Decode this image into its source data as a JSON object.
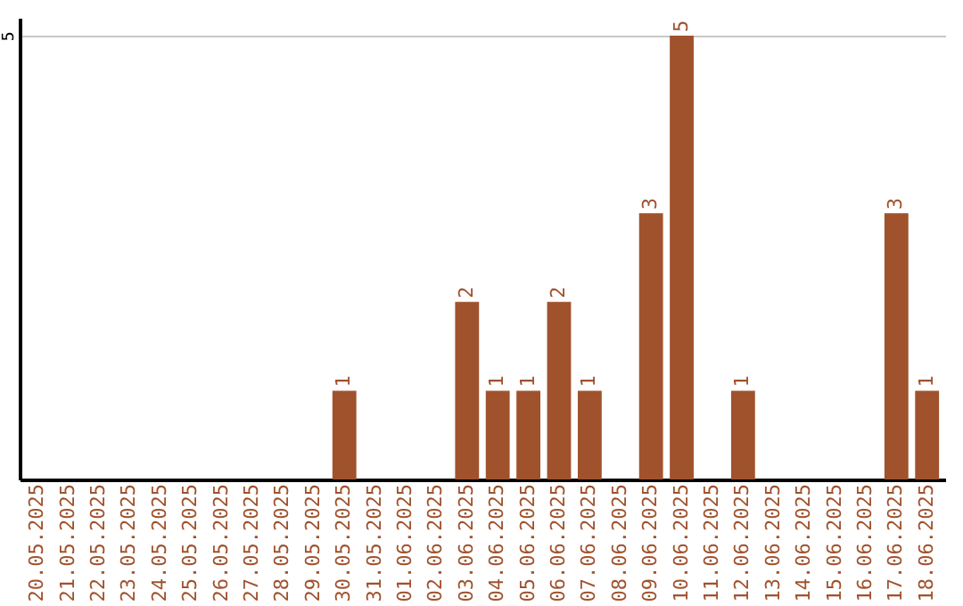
{
  "chart_data": {
    "type": "bar",
    "categories": [
      "20.05.2025",
      "21.05.2025",
      "22.05.2025",
      "23.05.2025",
      "24.05.2025",
      "25.05.2025",
      "26.05.2025",
      "27.05.2025",
      "28.05.2025",
      "29.05.2025",
      "30.05.2025",
      "31.05.2025",
      "01.06.2025",
      "02.06.2025",
      "03.06.2025",
      "04.06.2025",
      "05.06.2025",
      "06.06.2025",
      "07.06.2025",
      "08.06.2025",
      "09.06.2025",
      "10.06.2025",
      "11.06.2025",
      "12.06.2025",
      "13.06.2025",
      "14.06.2025",
      "15.06.2025",
      "16.06.2025",
      "17.06.2025",
      "18.06.2025"
    ],
    "values": [
      0,
      0,
      0,
      0,
      0,
      0,
      0,
      0,
      0,
      0,
      1,
      0,
      0,
      0,
      2,
      1,
      1,
      2,
      1,
      0,
      3,
      5,
      0,
      1,
      0,
      0,
      0,
      0,
      3,
      1
    ],
    "value_labels": [
      null,
      null,
      null,
      null,
      null,
      null,
      null,
      null,
      null,
      null,
      "1",
      null,
      null,
      null,
      "2",
      "1",
      "1",
      "2",
      "1",
      null,
      "3",
      "5",
      null,
      "1",
      null,
      null,
      null,
      null,
      "3",
      "1"
    ],
    "color": "#a0522d",
    "ylim": [
      0,
      5.2
    ],
    "yticks": [
      5
    ],
    "grid": "y"
  }
}
